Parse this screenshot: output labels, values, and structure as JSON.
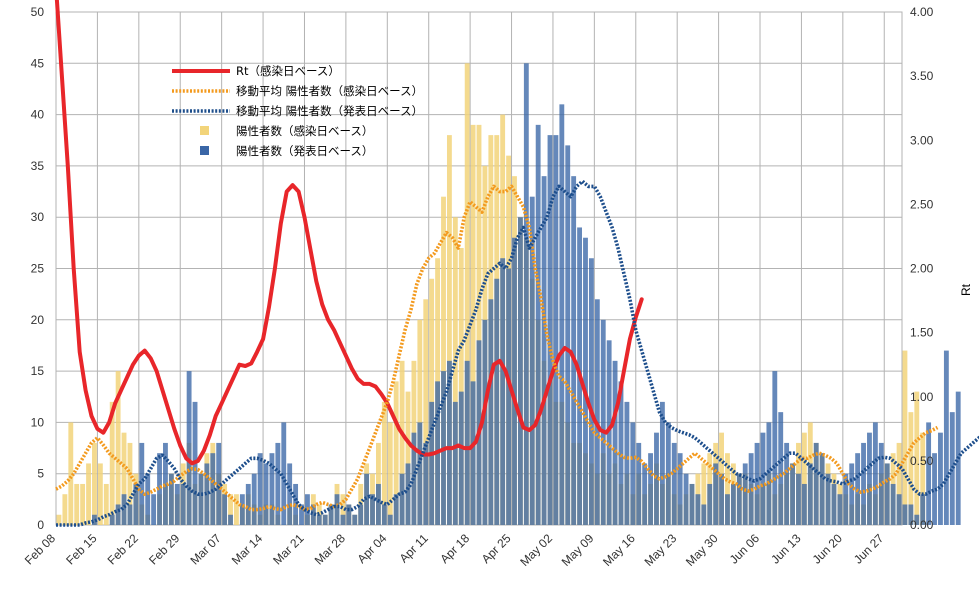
{
  "chart_data": {
    "type": "bar+line",
    "title": "",
    "ylabel_left": "",
    "ylabel_right": "Rt",
    "ylim_left": [
      0,
      50
    ],
    "ylim_right": [
      0,
      4
    ],
    "grid": true,
    "legend_placement": "top-left",
    "x_start": "2020-02-08",
    "x_end": "2020-06-30",
    "x_tick_labels": [
      "Feb 08",
      "Feb 15",
      "Feb 22",
      "Feb 29",
      "Mar 07",
      "Mar 14",
      "Mar 21",
      "Mar 28",
      "Apr 04",
      "Apr 11",
      "Apr 18",
      "Apr 25",
      "May 02",
      "May 09",
      "May 16",
      "May 23",
      "May 30",
      "Jun 06",
      "Jun 13",
      "Jun 20",
      "Jun 27"
    ],
    "left_ticks": [
      "0",
      "5",
      "10",
      "15",
      "20",
      "25",
      "30",
      "35",
      "40",
      "45",
      "50"
    ],
    "right_ticks": [
      "0.00",
      "0.50",
      "1.00",
      "1.50",
      "2.00",
      "2.50",
      "3.00",
      "3.50",
      "4.00"
    ],
    "series": [
      {
        "name": "Rt（感染日ベース）",
        "kind": "line",
        "axis": "right",
        "color": "#e8262a",
        "start": "2020-02-08",
        "values": [
          4.2,
          3.5,
          2.8,
          2.0,
          1.35,
          1.05,
          0.85,
          0.75,
          0.72,
          0.8,
          0.95,
          1.05,
          1.15,
          1.25,
          1.32,
          1.36,
          1.3,
          1.2,
          1.05,
          0.9,
          0.75,
          0.62,
          0.52,
          0.48,
          0.5,
          0.58,
          0.7,
          0.85,
          0.95,
          1.05,
          1.15,
          1.25,
          1.24,
          1.26,
          1.35,
          1.45,
          1.7,
          2.0,
          2.35,
          2.6,
          2.65,
          2.6,
          2.4,
          2.15,
          1.9,
          1.72,
          1.6,
          1.52,
          1.42,
          1.32,
          1.22,
          1.14,
          1.1,
          1.1,
          1.08,
          1.02,
          0.95,
          0.85,
          0.75,
          0.68,
          0.62,
          0.58,
          0.55,
          0.55,
          0.56,
          0.58,
          0.6,
          0.6,
          0.62,
          0.6,
          0.6,
          0.65,
          0.8,
          1.05,
          1.25,
          1.28,
          1.2,
          1.05,
          0.9,
          0.76,
          0.74,
          0.78,
          0.9,
          1.05,
          1.2,
          1.32,
          1.38,
          1.35,
          1.25,
          1.1,
          0.95,
          0.82,
          0.74,
          0.72,
          0.78,
          0.95,
          1.2,
          1.45,
          1.62,
          1.76
        ]
      },
      {
        "name": "移動平均 陽性者数（感染日ベース）",
        "kind": "line-dotted",
        "axis": "left",
        "color": "#f39a1e",
        "start": "2020-02-08",
        "values": [
          3.5,
          3.8,
          4.3,
          5,
          6,
          7,
          8,
          8.5,
          7.8,
          7,
          6.5,
          6,
          5.5,
          4.5,
          3.5,
          3,
          3.2,
          3.5,
          3.8,
          4,
          4.3,
          4.8,
          5.2,
          5.5,
          5.4,
          5,
          4.5,
          4,
          3.5,
          3,
          2.5,
          2,
          1.8,
          1.5,
          1.5,
          1.6,
          1.8,
          1.6,
          1.5,
          1.8,
          2,
          1.8,
          1.5,
          1.6,
          2,
          2.2,
          2,
          1.8,
          2,
          2.5,
          3.5,
          4.5,
          6,
          7.5,
          9,
          10.5,
          12,
          14,
          16.5,
          19,
          21,
          23.5,
          25,
          26,
          26.5,
          27.5,
          28.5,
          28,
          27,
          30,
          31.5,
          31,
          30.5,
          32,
          33,
          32.5,
          32.5,
          33,
          32,
          31,
          29,
          25,
          22,
          18.5,
          16,
          14.5,
          14,
          13,
          12,
          11,
          10,
          9,
          8.5,
          8,
          7.5,
          7,
          6.6,
          6.5,
          6.6,
          6.2,
          5.5,
          4.8,
          4.5,
          4.7,
          5,
          5.5,
          6,
          6.5,
          7,
          6.5,
          6,
          5.5,
          5,
          4.5,
          4.2,
          4,
          3.5,
          3.3,
          3.5,
          3.8,
          4,
          4.3,
          4.7,
          5,
          5.5,
          6,
          6.5,
          6.5,
          6.8,
          7,
          6.8,
          6.5,
          6,
          5,
          4,
          3.5,
          3.2,
          3.3,
          3.5,
          3.8,
          4.2,
          4.5,
          5,
          6,
          7,
          8,
          8.5,
          9,
          9.2,
          9.5
        ]
      },
      {
        "name": "移動平均 陽性者数（発表日ベース）",
        "kind": "line-dotted",
        "axis": "left",
        "color": "#1d4e8c",
        "start": "2020-02-08",
        "values": [
          0,
          0,
          0,
          0,
          0,
          0.2,
          0.3,
          0.5,
          0.8,
          1,
          1.3,
          1.5,
          2,
          3,
          4,
          4.5,
          5.5,
          6.5,
          6.8,
          6.2,
          5.5,
          4.5,
          3.8,
          3.3,
          3,
          3,
          3.2,
          3.5,
          4,
          4.5,
          5,
          5.5,
          6,
          6.5,
          6.5,
          6.3,
          6,
          5.5,
          5,
          4,
          3,
          2,
          1.5,
          1.2,
          1,
          1.2,
          1.5,
          1.8,
          1.8,
          1.5,
          1.5,
          1.8,
          2.5,
          2.8,
          2.5,
          2.2,
          2,
          2.5,
          3,
          3.2,
          4,
          5.5,
          7,
          8.5,
          10,
          11.5,
          13,
          15,
          17,
          18,
          19.5,
          21,
          23,
          24.5,
          25,
          25.5,
          25,
          26,
          28,
          29,
          27,
          28,
          29,
          30,
          32,
          33,
          32.5,
          32,
          33,
          33.5,
          33,
          33,
          32,
          30.5,
          29,
          27,
          24.5,
          22,
          19,
          17,
          15,
          13,
          11,
          10,
          9.5,
          9.2,
          9,
          8.8,
          8.5,
          8,
          7.5,
          7,
          6.5,
          6,
          5.5,
          5,
          4.8,
          4.5,
          4.3,
          4.5,
          5,
          5.5,
          6,
          6.5,
          7,
          7,
          6.5,
          6,
          5.5,
          5,
          4.5,
          4.3,
          4.2,
          4,
          4.3,
          4.5,
          5,
          5.5,
          6,
          6.5,
          6.6,
          6.5,
          6,
          5.5,
          4.5,
          3.5,
          3,
          3,
          3.3,
          3.5,
          4,
          5,
          6,
          7,
          7.5,
          8,
          8.5,
          8.8,
          9
        ]
      },
      {
        "name": "陽性者数（感染日ベース）",
        "kind": "bar",
        "axis": "left",
        "color": "#f2d47a",
        "start": "2020-02-08",
        "values": [
          1,
          3,
          10,
          4,
          4,
          6,
          8,
          6,
          4,
          12,
          15,
          9,
          8,
          5,
          2,
          1,
          0,
          3,
          4,
          5,
          3,
          6,
          8,
          4,
          5,
          7,
          8,
          5,
          4,
          3,
          3,
          2,
          3,
          2,
          1,
          2,
          2,
          1,
          0,
          2,
          1,
          0,
          1,
          3,
          2,
          1,
          2,
          4,
          3,
          2,
          1,
          4,
          6,
          5,
          8,
          12,
          10,
          14,
          16,
          13,
          16,
          20,
          22,
          24,
          26,
          32,
          38,
          30,
          27,
          45,
          39,
          39,
          35,
          38,
          38,
          40,
          36,
          34,
          30,
          28,
          24,
          20,
          16,
          14,
          12,
          12,
          10,
          8,
          8,
          7,
          6,
          5,
          7,
          5,
          6,
          4,
          5,
          3,
          5,
          3,
          4,
          6,
          4,
          5,
          3,
          2,
          3,
          4,
          5,
          6,
          7,
          8,
          9,
          7,
          6,
          5,
          5,
          4,
          3,
          4,
          5,
          3,
          4,
          5,
          6,
          8,
          9,
          10,
          8,
          7,
          6,
          5,
          4,
          3,
          2,
          3,
          2,
          4,
          3,
          5,
          6,
          7,
          8,
          17,
          11,
          13,
          9
        ]
      },
      {
        "name": "陽性者数（発表日ベース）",
        "kind": "bar",
        "axis": "left",
        "color": "#3a66a6",
        "start": "2020-02-08",
        "values": [
          0,
          0,
          0,
          0,
          0,
          0,
          1,
          0,
          0,
          1,
          2,
          3,
          2,
          4,
          8,
          5,
          3,
          7,
          8,
          5,
          4,
          4,
          15,
          12,
          5,
          6,
          7,
          8,
          3,
          1,
          0,
          3,
          4,
          5,
          7,
          6,
          7,
          8,
          10,
          6,
          4,
          2,
          3,
          2,
          1,
          1,
          2,
          3,
          1,
          2,
          1,
          2,
          5,
          3,
          4,
          2,
          1,
          3,
          5,
          6,
          9,
          10,
          8,
          12,
          14,
          15,
          16,
          12,
          13,
          16,
          14,
          18,
          20,
          22,
          24,
          26,
          25,
          28,
          30,
          45,
          32,
          39,
          34,
          38,
          38,
          41,
          37,
          34,
          29,
          28,
          26,
          22,
          20,
          18,
          16,
          14,
          12,
          10,
          8,
          6,
          7,
          9,
          12,
          10,
          8,
          7,
          5,
          4,
          3,
          2,
          4,
          6,
          5,
          3,
          4,
          5,
          6,
          7,
          8,
          9,
          10,
          15,
          11,
          8,
          6,
          5,
          4,
          6,
          8,
          7,
          5,
          4,
          3,
          5,
          6,
          7,
          8,
          9,
          10,
          8,
          6,
          4,
          3,
          2,
          2,
          1,
          3,
          10,
          7,
          9,
          17,
          11,
          13
        ]
      }
    ]
  }
}
